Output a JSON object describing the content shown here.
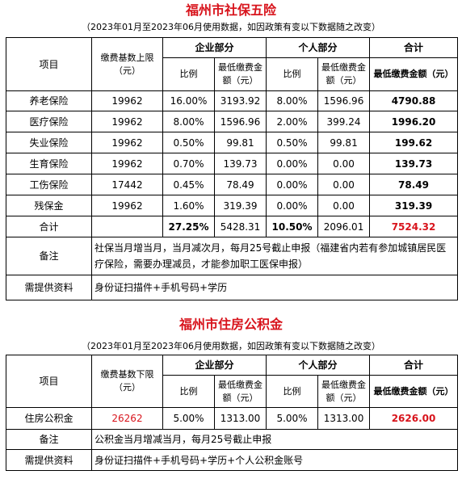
{
  "section1": {
    "title": "福州市社保五险",
    "subtitle": "（2023年01月至2023年06月使用数据，如因政策有变以下数据随之改变）",
    "header": {
      "item": "项目",
      "base": "缴费基数上限（元）",
      "company": "企业部分",
      "personal": "个人部分",
      "total": "合计",
      "ratio": "比例",
      "min_amount": "最低缴费金额（元）",
      "total_min": "最低缴费金额（元）"
    },
    "rows": [
      {
        "name": "养老保险",
        "base": "19962",
        "c_ratio": "16.00%",
        "c_amount": "3193.92",
        "p_ratio": "8.00%",
        "p_amount": "1596.96",
        "total": "4790.88"
      },
      {
        "name": "医疗保险",
        "base": "19962",
        "c_ratio": "8.00%",
        "c_amount": "1596.96",
        "p_ratio": "2.00%",
        "p_amount": "399.24",
        "total": "1996.20"
      },
      {
        "name": "失业保险",
        "base": "19962",
        "c_ratio": "0.50%",
        "c_amount": "99.81",
        "p_ratio": "0.50%",
        "p_amount": "99.81",
        "total": "199.62"
      },
      {
        "name": "生育保险",
        "base": "19962",
        "c_ratio": "0.70%",
        "c_amount": "139.73",
        "p_ratio": "0.00%",
        "p_amount": "0.00",
        "total": "139.73"
      },
      {
        "name": "工伤保险",
        "base": "17442",
        "c_ratio": "0.45%",
        "c_amount": "78.49",
        "p_ratio": "0.00%",
        "p_amount": "0.00",
        "total": "78.49"
      },
      {
        "name": "残保金",
        "base": "19962",
        "c_ratio": "1.60%",
        "c_amount": "319.39",
        "p_ratio": "0.00%",
        "p_amount": "0.00",
        "total": "319.39"
      }
    ],
    "sum": {
      "name": "合计",
      "c_ratio": "27.25%",
      "c_amount": "5428.31",
      "p_ratio": "10.50%",
      "p_amount": "2096.01",
      "total": "7524.32"
    },
    "note_label": "备注",
    "note_text": "社保当月增当月，当月减次月，每月25号截止申报（福建省内若有参加城镇居民医疗保险，需要办理减员，才能参加职工医保申报）",
    "docs_label": "需提供资料",
    "docs_text": "身份证扫描件+手机号码+学历"
  },
  "section2": {
    "title": "福州市住房公积金",
    "subtitle": "（2023年01月至2023年06月使用数据，如因政策有变以下数据随之改变）",
    "header": {
      "item": "项目",
      "base": "缴费基数下限（元）",
      "company": "企业部分",
      "personal": "个人部分",
      "total": "合计",
      "ratio": "比例",
      "c_min_amount": "最低缴费金额（元）",
      "p_min_amount": "最低缴费金额（元）",
      "total_min": "最低缴费金额（元）"
    },
    "row": {
      "name": "住房公积金",
      "base": "26262",
      "c_ratio": "5.00%",
      "c_amount": "1313.00",
      "p_ratio": "5.00%",
      "p_amount": "1313.00",
      "total": "2626.00"
    },
    "note_label": "备注",
    "note_text": "公积金当月增减当月，每月25号截止申报",
    "docs_label": "需提供资料",
    "docs_text": "身份证扫描件+手机号码+学历+个人公积金账号"
  },
  "colors": {
    "accent_red": "#d8141c",
    "border": "#000000"
  }
}
